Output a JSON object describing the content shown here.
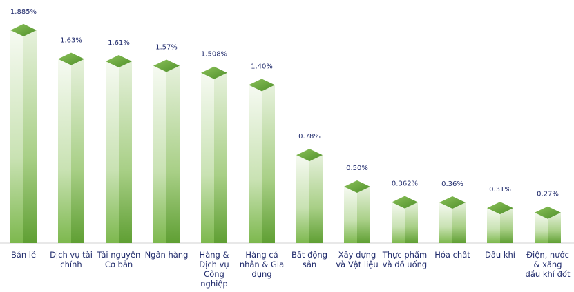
{
  "chart_data": {
    "type": "bar3d",
    "categories": [
      "Bán lẻ",
      "Dịch vụ tài chính",
      "Tài nguyên Cơ bản",
      "Ngân hàng",
      "Hàng & Dịch vụ Công nghiệp",
      "Hàng cá nhân & Gia dụng",
      "Bất động sản",
      "Xây dựng và Vật liệu",
      "Thực phẩm và đồ uống",
      "Hóa chất",
      "Dầu khí",
      "Điện, nước & xăng dầu khí đốt"
    ],
    "values": [
      1.885,
      1.63,
      1.61,
      1.57,
      1.508,
      1.4,
      0.78,
      0.5,
      0.362,
      0.36,
      0.31,
      0.27
    ],
    "value_labels": [
      "1.885%",
      "1.63%",
      "1.61%",
      "1.57%",
      "1.508%",
      "1.40%",
      "0.78%",
      "0.50%",
      "0.362%",
      "0.36%",
      "0.31%",
      "0.27%"
    ],
    "color": "#6aaa3a"
  }
}
